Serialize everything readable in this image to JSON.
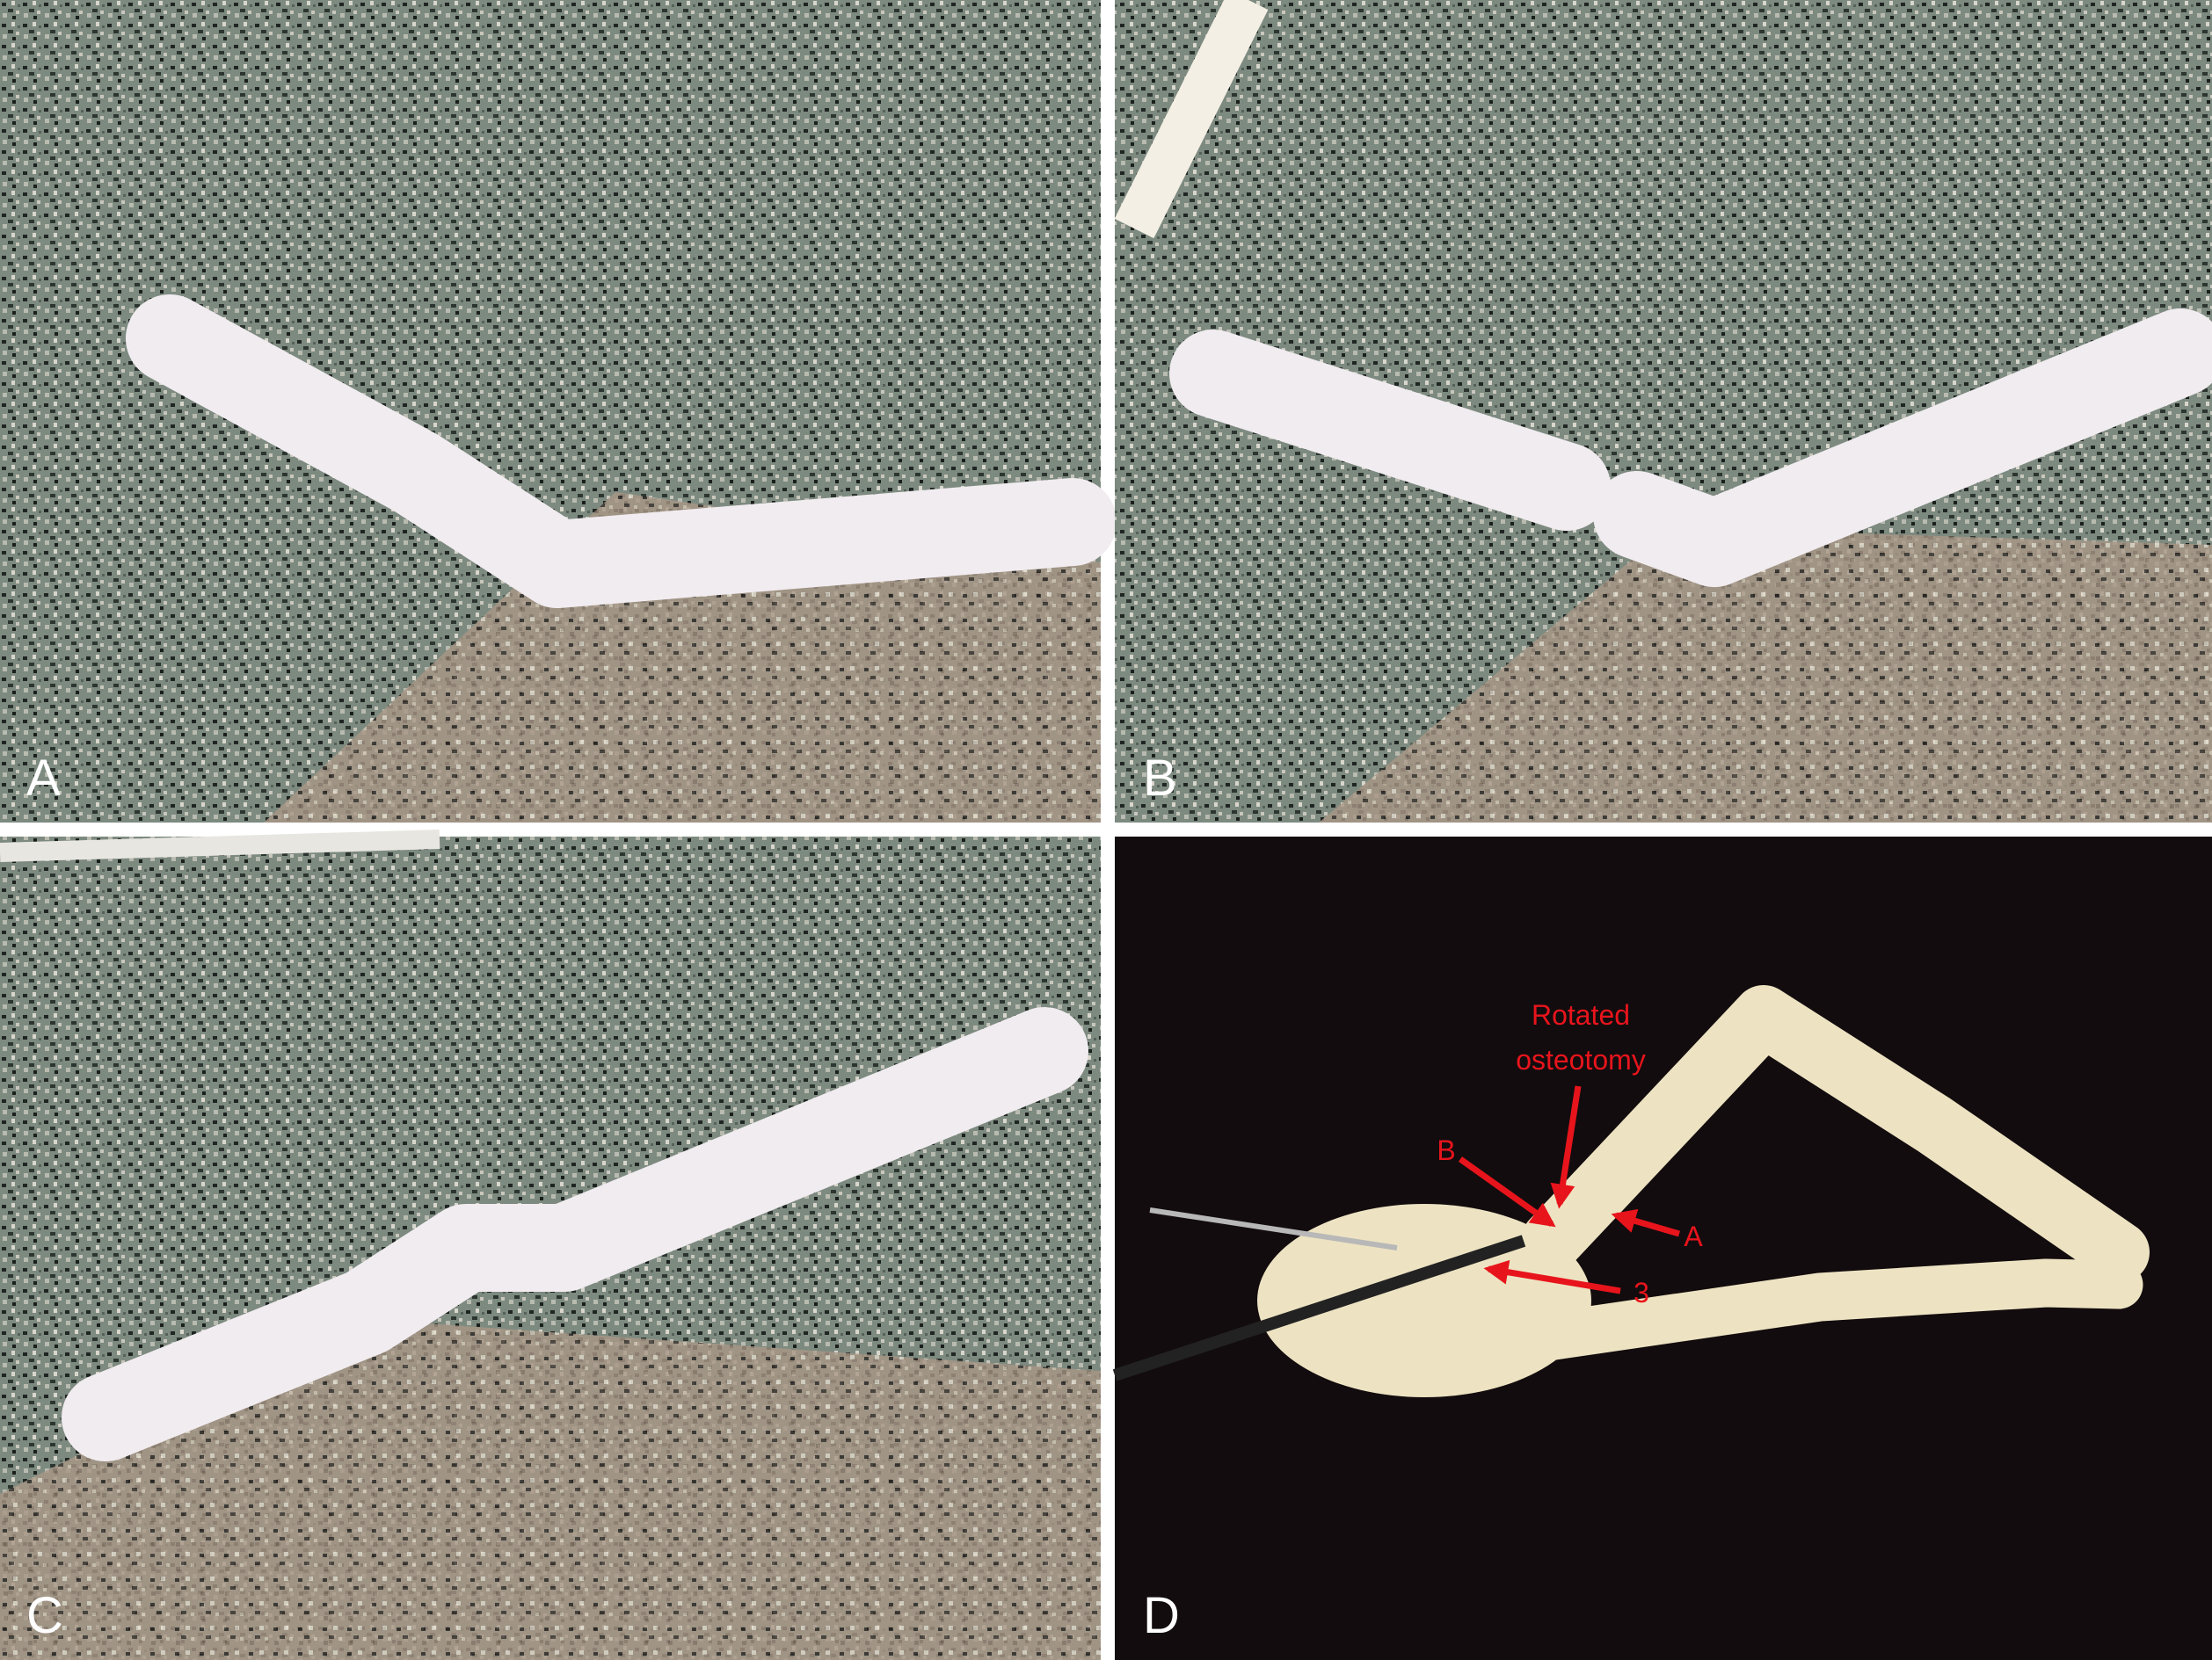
{
  "panels": [
    {
      "label": "A"
    },
    {
      "label": "B"
    },
    {
      "label": "C"
    },
    {
      "label": "D",
      "callout": [
        "Rotated",
        "osteotomy"
      ],
      "annotations": [
        "B",
        "A",
        "3"
      ]
    }
  ]
}
